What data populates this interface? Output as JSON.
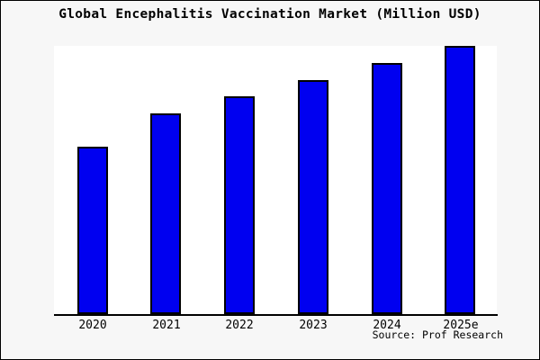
{
  "window": {
    "background": "#f7f7f7",
    "border_color": "#000000"
  },
  "chart_data": {
    "type": "bar",
    "title": "Global Encephalitis Vaccination Market (Million USD)",
    "categories": [
      "2020",
      "2021",
      "2022",
      "2023",
      "2024",
      "2025e"
    ],
    "values": [
      62.4,
      74.8,
      81.2,
      87.2,
      93.6,
      100
    ],
    "value_note": "no y-axis ticks, labels or gridlines shown; values are relative with tallest bar (2025e) = 100",
    "xlabel": "",
    "ylabel": "",
    "ylim": [
      0,
      100
    ],
    "grid": false,
    "legend": false,
    "bar_fill": "#0000f0",
    "bar_border": "#000000",
    "plot_background": "#ffffff",
    "source_text": "Source: Prof Research"
  }
}
